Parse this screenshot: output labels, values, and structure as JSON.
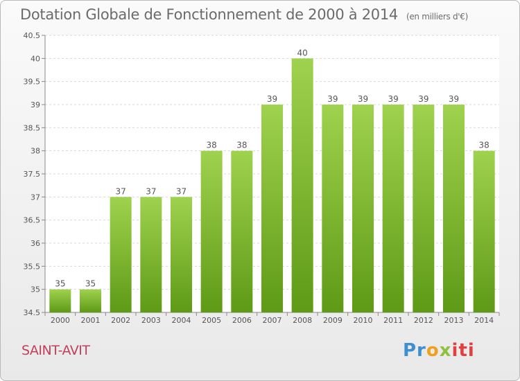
{
  "title": "Dotation Globale de Fonctionnement de 2000 à 2014",
  "subtitle": "(en milliers d'€)",
  "commune": "SAINT-AVIT",
  "logo": {
    "part1": "Pr",
    "part2": "o",
    "part3": "x",
    "part4": "iti"
  },
  "colors": {
    "bar_top": "#9fd24e",
    "bar_bottom": "#5e9a16",
    "title": "#6b6b6b",
    "commune": "#c0405a"
  },
  "chart_data": {
    "type": "bar",
    "title": "Dotation Globale de Fonctionnement de 2000 à 2014",
    "subtitle": "(en milliers d'€)",
    "categories": [
      "2000",
      "2001",
      "2002",
      "2003",
      "2004",
      "2005",
      "2006",
      "2007",
      "2008",
      "2009",
      "2010",
      "2011",
      "2012",
      "2013",
      "2014"
    ],
    "values": [
      35,
      35,
      37,
      37,
      37,
      38,
      38,
      39,
      40,
      39,
      39,
      39,
      39,
      39,
      38
    ],
    "value_labels": [
      "35",
      "35",
      "37",
      "37",
      "37",
      "38",
      "38",
      "39",
      "40",
      "39",
      "39",
      "39",
      "39",
      "39",
      "38"
    ],
    "ylim": [
      34.5,
      40.5
    ],
    "yticks": [
      "34.5",
      "35",
      "35.5",
      "36",
      "36.5",
      "37",
      "37.5",
      "38",
      "38.5",
      "39",
      "39.5",
      "40",
      "40.5"
    ],
    "grid": true,
    "xlabel": "",
    "ylabel": ""
  }
}
